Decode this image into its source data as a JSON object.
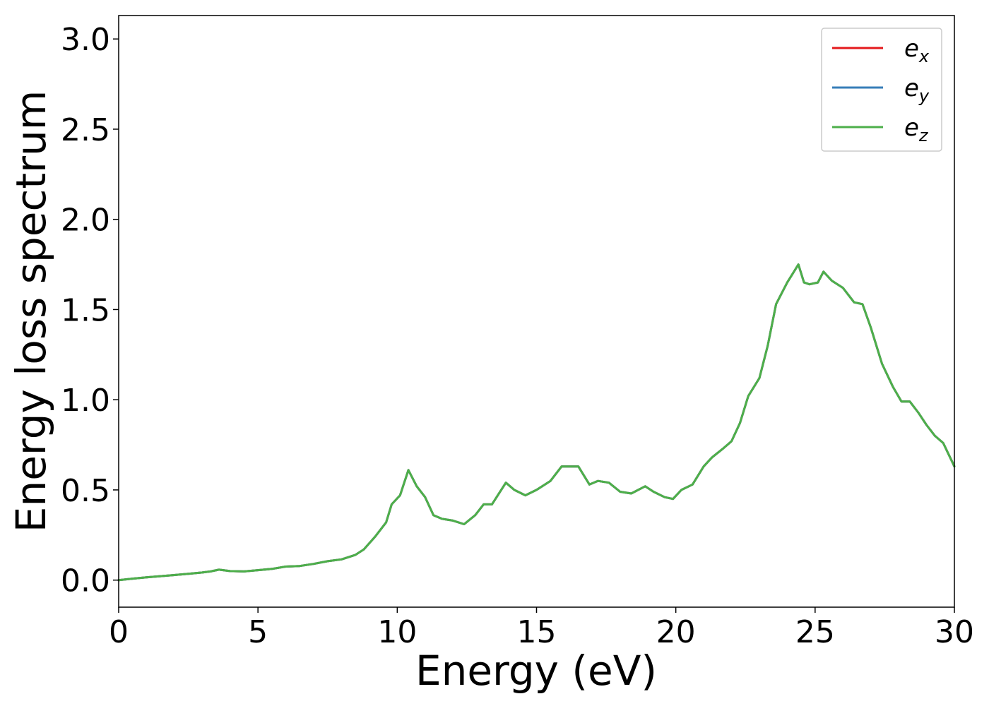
{
  "chart_data": {
    "type": "line",
    "title": "",
    "xlabel": "Energy (eV)",
    "ylabel": "Energy loss spectrum",
    "xlim": [
      0,
      30
    ],
    "ylim": [
      -0.15,
      3.13
    ],
    "xticks": [
      0,
      5,
      10,
      15,
      20,
      25,
      30
    ],
    "xtick_labels": [
      "0",
      "5",
      "10",
      "15",
      "20",
      "25",
      "30"
    ],
    "yticks": [
      0.0,
      0.5,
      1.0,
      1.5,
      2.0,
      2.5,
      3.0
    ],
    "ytick_labels": [
      "0.0",
      "0.5",
      "1.0",
      "1.5",
      "2.0",
      "2.5",
      "3.0"
    ],
    "grid": false,
    "legend_position": "top-right",
    "x": [
      0,
      0.5,
      1,
      1.5,
      2,
      2.5,
      3,
      3.3,
      3.6,
      4,
      4.5,
      5,
      5.5,
      6,
      6.5,
      7,
      7.5,
      8,
      8.5,
      8.8,
      9.2,
      9.6,
      9.8,
      10.1,
      10.4,
      10.7,
      11,
      11.3,
      11.6,
      12,
      12.4,
      12.8,
      13.1,
      13.4,
      13.9,
      14.2,
      14.6,
      15,
      15.5,
      15.9,
      16.2,
      16.5,
      16.9,
      17.2,
      17.6,
      18,
      18.4,
      18.9,
      19.2,
      19.6,
      19.9,
      20.2,
      20.6,
      21,
      21.3,
      21.7,
      22,
      22.3,
      22.6,
      23,
      23.3,
      23.6,
      24,
      24.4,
      24.6,
      24.8,
      25.1,
      25.3,
      25.6,
      26,
      26.4,
      26.7,
      27,
      27.4,
      27.8,
      28.1,
      28.4,
      28.7,
      29,
      29.3,
      29.6,
      30
    ],
    "series": [
      {
        "name": "e_x",
        "label_main": "e",
        "label_sub": "x",
        "color": "#e41a1c",
        "y": [
          0.0,
          0.008,
          0.015,
          0.022,
          0.028,
          0.035,
          0.042,
          0.048,
          0.058,
          0.05,
          0.048,
          0.055,
          0.062,
          0.075,
          0.078,
          0.09,
          0.105,
          0.115,
          0.14,
          0.17,
          0.24,
          0.32,
          0.42,
          0.47,
          0.61,
          0.52,
          0.46,
          0.36,
          0.34,
          0.33,
          0.31,
          0.36,
          0.42,
          0.42,
          0.54,
          0.5,
          0.47,
          0.5,
          0.55,
          0.63,
          0.63,
          0.63,
          0.53,
          0.55,
          0.54,
          0.49,
          0.48,
          0.52,
          0.49,
          0.46,
          0.45,
          0.5,
          0.53,
          0.63,
          0.68,
          0.73,
          0.77,
          0.87,
          1.02,
          1.12,
          1.3,
          1.53,
          1.65,
          1.75,
          1.65,
          1.64,
          1.65,
          1.71,
          1.66,
          1.62,
          1.54,
          1.53,
          1.4,
          1.2,
          1.07,
          0.99,
          0.99,
          0.93,
          0.86,
          0.8,
          0.76,
          0.63
        ]
      },
      {
        "name": "e_y",
        "label_main": "e",
        "label_sub": "y",
        "color": "#377eb8",
        "y": [
          0.0,
          0.008,
          0.015,
          0.022,
          0.028,
          0.035,
          0.042,
          0.048,
          0.058,
          0.05,
          0.048,
          0.055,
          0.062,
          0.075,
          0.078,
          0.09,
          0.105,
          0.115,
          0.14,
          0.17,
          0.24,
          0.32,
          0.42,
          0.47,
          0.61,
          0.52,
          0.46,
          0.36,
          0.34,
          0.33,
          0.31,
          0.36,
          0.42,
          0.42,
          0.54,
          0.5,
          0.47,
          0.5,
          0.55,
          0.63,
          0.63,
          0.63,
          0.53,
          0.55,
          0.54,
          0.49,
          0.48,
          0.52,
          0.49,
          0.46,
          0.45,
          0.5,
          0.53,
          0.63,
          0.68,
          0.73,
          0.77,
          0.87,
          1.02,
          1.12,
          1.3,
          1.53,
          1.65,
          1.75,
          1.65,
          1.64,
          1.65,
          1.71,
          1.66,
          1.62,
          1.54,
          1.53,
          1.4,
          1.2,
          1.07,
          0.99,
          0.99,
          0.93,
          0.86,
          0.8,
          0.76,
          0.63
        ]
      },
      {
        "name": "e_z",
        "label_main": "e",
        "label_sub": "z",
        "color": "#4daf4a",
        "y": [
          0.0,
          0.008,
          0.015,
          0.022,
          0.028,
          0.035,
          0.042,
          0.048,
          0.058,
          0.05,
          0.048,
          0.055,
          0.062,
          0.075,
          0.078,
          0.09,
          0.105,
          0.115,
          0.14,
          0.17,
          0.24,
          0.32,
          0.42,
          0.47,
          0.61,
          0.52,
          0.46,
          0.36,
          0.34,
          0.33,
          0.31,
          0.36,
          0.42,
          0.42,
          0.54,
          0.5,
          0.47,
          0.5,
          0.55,
          0.63,
          0.63,
          0.63,
          0.53,
          0.55,
          0.54,
          0.49,
          0.48,
          0.52,
          0.49,
          0.46,
          0.45,
          0.5,
          0.53,
          0.63,
          0.68,
          0.73,
          0.77,
          0.87,
          1.02,
          1.12,
          1.3,
          1.53,
          1.65,
          1.75,
          1.65,
          1.64,
          1.65,
          1.71,
          1.66,
          1.62,
          1.54,
          1.53,
          1.4,
          1.2,
          1.07,
          0.99,
          0.99,
          0.93,
          0.86,
          0.8,
          0.76,
          0.63
        ]
      }
    ]
  }
}
